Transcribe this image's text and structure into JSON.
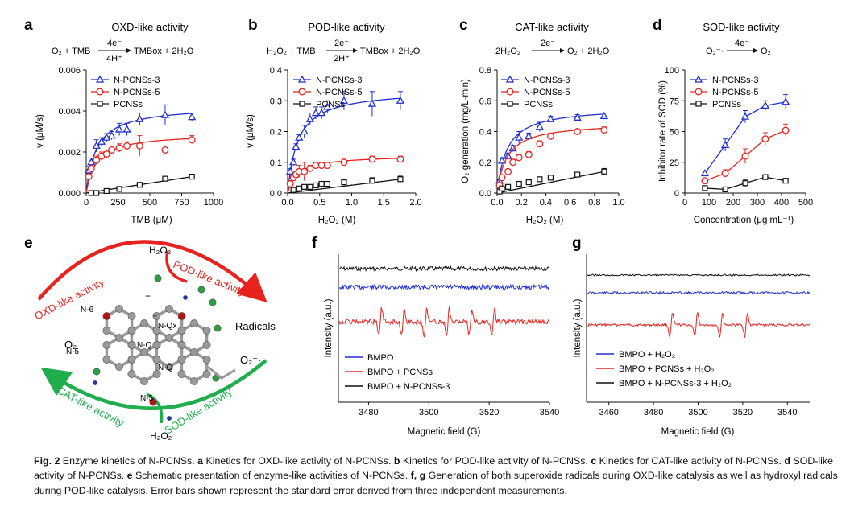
{
  "colors": {
    "n3": "#1f2fd6",
    "n5": "#e8231f",
    "pc": "#111111",
    "green": "#1fae4b"
  },
  "panels": {
    "a": {
      "letter": "a",
      "title": "OXD-like activity",
      "xlabel": "TMB (μM)",
      "ylabel": "v (μM/s)"
    },
    "b": {
      "letter": "b",
      "title": "POD-like activity",
      "xlabel": "H₂O₂ (M)",
      "ylabel": "v (μM/s)"
    },
    "c": {
      "letter": "c",
      "title": "CAT-like activity",
      "xlabel": "H₂O₂ (M)",
      "ylabel": "O₂ generation (mg/L-min)"
    },
    "d": {
      "letter": "d",
      "title": "SOD-like activity",
      "xlabel": "Concentration (μg mL⁻¹)",
      "ylabel": "Inhibitor rate of SOD (%)"
    },
    "e": {
      "letter": "e"
    },
    "f": {
      "letter": "f",
      "xlabel": "Magnetic field (G)",
      "ylabel": "Intensity (a.u.)"
    },
    "g": {
      "letter": "g",
      "xlabel": "Magnetic field (G)",
      "ylabel": "Intensity (a.u.)"
    }
  },
  "reactions": {
    "a": {
      "left": "O₂ + TMB",
      "top": "4e⁻",
      "bottom": "4H⁺",
      "right": "TMBox + 2H₂O"
    },
    "b": {
      "left": "H₂O₂ + TMB",
      "top": "2e⁻",
      "bottom": "2H⁺",
      "right": "TMBox + 2H₂O"
    },
    "c": {
      "left": "2H₂O₂",
      "top": "2e⁻",
      "bottom": "",
      "right": "O₂ + 2H₂O"
    },
    "d": {
      "left": "O₂⁻·",
      "top": "4e⁻",
      "bottom": "",
      "right": "O₂"
    }
  },
  "legend_kinetics": [
    "N-PCNSs-3",
    "N-PCNSs-5",
    "PCNSs"
  ],
  "chart_data": [
    {
      "panel": "a",
      "type": "scatter",
      "xlim": [
        0,
        1000
      ],
      "ylim": [
        0,
        0.006
      ],
      "xticks": [
        "0",
        "250",
        "500",
        "750",
        "1000"
      ],
      "yticks": [
        "0.000",
        "0.002",
        "0.004",
        "0.006"
      ],
      "series": [
        {
          "name": "N-PCNSs-3",
          "x": [
            20,
            40,
            80,
            120,
            160,
            200,
            260,
            320,
            420,
            620,
            830
          ],
          "y": [
            0.0011,
            0.0015,
            0.0023,
            0.0025,
            0.0027,
            0.0028,
            0.0031,
            0.0031,
            0.0036,
            0.0038,
            0.0037
          ],
          "err": [
            0.0002,
            0.0002,
            0.0003,
            0.0002,
            0.0002,
            0.0002,
            0.0003,
            0.0003,
            0.0003,
            0.0005,
            0.0002
          ]
        },
        {
          "name": "N-PCNSs-5",
          "x": [
            20,
            40,
            80,
            120,
            160,
            200,
            260,
            320,
            420,
            620,
            830
          ],
          "y": [
            0.0008,
            0.0012,
            0.0016,
            0.0018,
            0.0019,
            0.0021,
            0.0022,
            0.0023,
            0.0023,
            0.0021,
            0.0026
          ],
          "err": [
            0.0001,
            0.0001,
            0.0002,
            0.0002,
            0.0002,
            0.0002,
            0.0002,
            0.0002,
            0.0005,
            0.0002,
            0.0002
          ]
        },
        {
          "name": "PCNSs",
          "x": [
            40,
            80,
            160,
            260,
            420,
            620,
            830
          ],
          "y": [
            0.0,
            0.0,
            0.0001,
            0.0002,
            0.0004,
            0.0007,
            0.0008
          ],
          "err": [
            0,
            0,
            0,
            0,
            0,
            0.0001,
            0.0001
          ]
        }
      ]
    },
    {
      "panel": "b",
      "type": "scatter",
      "xlim": [
        0,
        2.0
      ],
      "ylim": [
        0,
        0.4
      ],
      "xticks": [
        "0.0",
        "0.5",
        "1.0",
        "1.5",
        "2.0"
      ],
      "yticks": [
        "0.0",
        "0.1",
        "0.2",
        "0.3",
        "0.4"
      ],
      "series": [
        {
          "name": "N-PCNSs-3",
          "x": [
            0.04,
            0.09,
            0.13,
            0.18,
            0.26,
            0.35,
            0.44,
            0.53,
            0.62,
            0.88,
            1.32,
            1.76
          ],
          "y": [
            0.07,
            0.1,
            0.15,
            0.18,
            0.2,
            0.24,
            0.26,
            0.26,
            0.28,
            0.3,
            0.29,
            0.3
          ],
          "err": [
            0.01,
            0.01,
            0.01,
            0.01,
            0.02,
            0.02,
            0.02,
            0.02,
            0.02,
            0.03,
            0.04,
            0.03
          ]
        },
        {
          "name": "N-PCNSs-5",
          "x": [
            0.04,
            0.09,
            0.13,
            0.18,
            0.26,
            0.35,
            0.44,
            0.53,
            0.62,
            0.88,
            1.32,
            1.76
          ],
          "y": [
            0.03,
            0.05,
            0.06,
            0.07,
            0.07,
            0.08,
            0.09,
            0.09,
            0.09,
            0.1,
            0.11,
            0.11
          ],
          "err": [
            0.01,
            0.01,
            0.01,
            0.02,
            0.03,
            0.01,
            0.01,
            0.01,
            0.01,
            0.01,
            0.01,
            0.01
          ]
        },
        {
          "name": "PCNSs",
          "x": [
            0.09,
            0.18,
            0.26,
            0.35,
            0.44,
            0.53,
            0.62,
            0.88,
            1.32,
            1.76
          ],
          "y": [
            0.01,
            0.015,
            0.02,
            0.02,
            0.025,
            0.03,
            0.03,
            0.035,
            0.04,
            0.045
          ],
          "err": [
            0,
            0,
            0,
            0,
            0,
            0,
            0,
            0.01,
            0.01,
            0.01
          ]
        }
      ]
    },
    {
      "panel": "c",
      "type": "scatter",
      "xlim": [
        0,
        1.0
      ],
      "ylim": [
        0,
        0.8
      ],
      "xticks": [
        "0.0",
        "0.2",
        "0.4",
        "0.6",
        "0.8",
        "1.0"
      ],
      "yticks": [
        "0.0",
        "0.2",
        "0.4",
        "0.6",
        "0.8"
      ],
      "series": [
        {
          "name": "N-PCNSs-3",
          "x": [
            0.02,
            0.04,
            0.09,
            0.13,
            0.18,
            0.26,
            0.35,
            0.44,
            0.66,
            0.88
          ],
          "y": [
            0.08,
            0.21,
            0.24,
            0.29,
            0.36,
            0.37,
            0.43,
            0.48,
            0.49,
            0.5
          ],
          "err": [
            0.01,
            0.02,
            0.02,
            0.02,
            0.04,
            0.02,
            0.03,
            0.02,
            0.02,
            0.02
          ]
        },
        {
          "name": "N-PCNSs-5",
          "x": [
            0.02,
            0.04,
            0.09,
            0.13,
            0.18,
            0.26,
            0.35,
            0.44,
            0.66,
            0.88
          ],
          "y": [
            0.05,
            0.1,
            0.14,
            0.2,
            0.23,
            0.25,
            0.32,
            0.37,
            0.4,
            0.41
          ],
          "err": [
            0.01,
            0.01,
            0.01,
            0.02,
            0.02,
            0.02,
            0.02,
            0.02,
            0.01,
            0.02
          ]
        },
        {
          "name": "PCNSs",
          "x": [
            0.02,
            0.04,
            0.09,
            0.18,
            0.26,
            0.35,
            0.44,
            0.66,
            0.88
          ],
          "y": [
            0.01,
            0.03,
            0.04,
            0.06,
            0.07,
            0.09,
            0.1,
            0.12,
            0.14
          ],
          "err": [
            0,
            0,
            0,
            0,
            0,
            0,
            0,
            0.01,
            0.02
          ]
        }
      ]
    },
    {
      "panel": "d",
      "type": "line",
      "xlim": [
        0,
        500
      ],
      "ylim": [
        0,
        100
      ],
      "xticks": [
        "0",
        "100",
        "200",
        "300",
        "400",
        "500"
      ],
      "yticks": [
        "0",
        "25",
        "50",
        "75",
        "100"
      ],
      "series": [
        {
          "name": "N-PCNSs-3",
          "x": [
            83,
            167,
            250,
            333,
            417
          ],
          "y": [
            16,
            39,
            62,
            71,
            74
          ],
          "err": [
            2,
            5,
            5,
            4,
            6
          ]
        },
        {
          "name": "N-PCNSs-5",
          "x": [
            83,
            167,
            250,
            333,
            417
          ],
          "y": [
            10,
            16,
            30,
            44,
            51
          ],
          "err": [
            2,
            3,
            6,
            5,
            5
          ]
        },
        {
          "name": "PCNSs",
          "x": [
            83,
            167,
            250,
            333,
            417
          ],
          "y": [
            4,
            3,
            8,
            13,
            10
          ],
          "err": [
            1,
            1,
            3,
            1,
            1
          ]
        }
      ]
    },
    {
      "panel": "f",
      "type": "line",
      "xlim": [
        3470,
        3540
      ],
      "xticks": [
        "3480",
        "3500",
        "3520",
        "3540"
      ],
      "series": [
        {
          "name": "BMPO"
        },
        {
          "name": "BMPO + PCNSs"
        },
        {
          "name": "BMPO + N-PCNSs-3"
        }
      ]
    },
    {
      "panel": "g",
      "type": "line",
      "xlim": [
        3450,
        3550
      ],
      "xticks": [
        "3460",
        "3480",
        "3500",
        "3520",
        "3540"
      ],
      "series": [
        {
          "name": "BMPO + H₂O₂"
        },
        {
          "name": "BMPO + PCNSs + H₂O₂"
        },
        {
          "name": "BMPO + N-PCNSs-3 + H₂O₂"
        }
      ]
    }
  ],
  "schematic": {
    "oxd": "OXD-like activity",
    "pod": "POD-like activity",
    "cat": "CAT-like activity",
    "sod": "SOD-like activity",
    "h2o2_top": "H₂O₂",
    "h2o2_bottom": "H₂O₂",
    "o2": "O₂",
    "superoxide": "O₂⁻·",
    "radicals": "Radicals",
    "atoms": [
      "N-6",
      "N-Qx",
      "N-5",
      "N-Q",
      "N-Q",
      "N-5"
    ],
    "minus": "−",
    "plus": "+"
  },
  "caption": {
    "fig": "Fig. 2",
    "t0": " Enzyme kinetics of N-PCNSs. ",
    "a": "a",
    "t1": " Kinetics for OXD-like activity of N-PCNSs. ",
    "b": "b",
    "t2": " Kinetics for POD-like activity of N-PCNSs. ",
    "c": "c",
    "t3": " Kinetics for CAT-like activity of N-PCNSs. ",
    "d": "d",
    "t4": " SOD-like activity of N-PCNSs. ",
    "e": "e",
    "t5": " Schematic presentation of enzyme-like activities of N-PCNSs. ",
    "fg": "f, g",
    "t6": " Generation of both superoxide radicals during OXD-like catalysis as well as hydroxyl radicals during POD-like catalysis. Error bars shown represent the standard error derived from three independent measurements."
  }
}
